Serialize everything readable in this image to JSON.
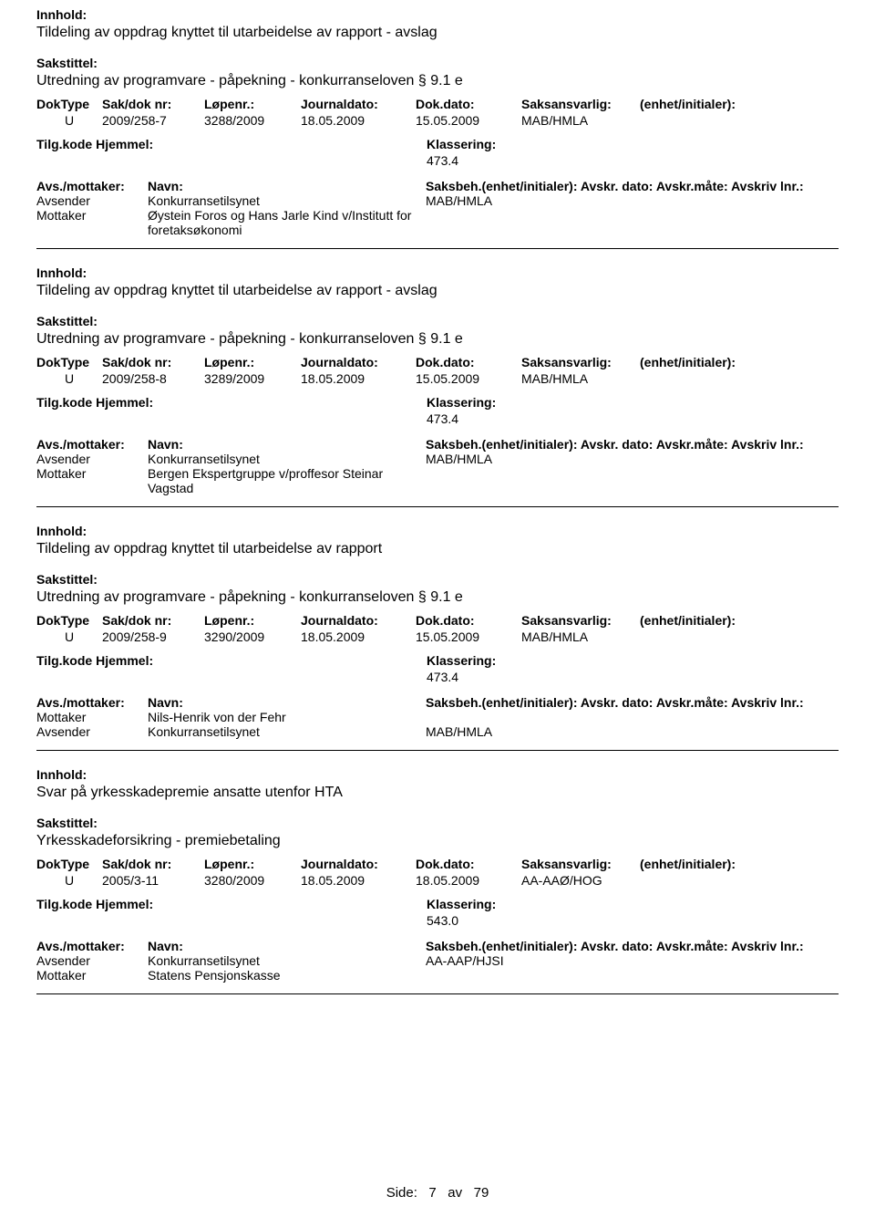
{
  "labels": {
    "innhold": "Innhold:",
    "sakstittel": "Sakstittel:",
    "doktype": "DokType",
    "sakdok": "Sak/dok nr:",
    "lopenr": "Løpenr.:",
    "journaldato": "Journaldato:",
    "dokdato": "Dok.dato:",
    "saksansvarlig": "Saksansvarlig:",
    "enhet_initialer": "(enhet/initialer):",
    "tilgkode": "Tilg.kode",
    "hjemmel": "Hjemmel:",
    "klassering": "Klassering:",
    "avs_mottaker": "Avs./mottaker:",
    "navn": "Navn:",
    "saksbeh_line": "Saksbeh.(enhet/initialer): Avskr. dato:  Avskr.måte:  Avskriv lnr.:",
    "avsender": "Avsender",
    "mottaker": "Mottaker",
    "side": "Side:",
    "av": "av"
  },
  "page": {
    "current": "7",
    "total": "79"
  },
  "entries": [
    {
      "title": "Tildeling av oppdrag knyttet til utarbeidelse av rapport - avslag",
      "subtitle": "Utredning av programvare - påpekning - konkurranseloven § 9.1 e",
      "doktype": "U",
      "sakdok": "2009/258-7",
      "lopenr": "3288/2009",
      "journaldato": "18.05.2009",
      "dokdato": "15.05.2009",
      "saksansvarlig": "MAB/HMLA",
      "klassering_val": "473.4",
      "parties": [
        {
          "role": "Avsender",
          "name": "Konkurransetilsynet",
          "saksbeh": "MAB/HMLA"
        },
        {
          "role": "Mottaker",
          "name": "Øystein Foros og Hans Jarle Kind v/Institutt for foretaksøkonomi",
          "saksbeh": ""
        }
      ]
    },
    {
      "title": "Tildeling av oppdrag knyttet til utarbeidelse av rapport - avslag",
      "subtitle": "Utredning av programvare - påpekning - konkurranseloven § 9.1 e",
      "doktype": "U",
      "sakdok": "2009/258-8",
      "lopenr": "3289/2009",
      "journaldato": "18.05.2009",
      "dokdato": "15.05.2009",
      "saksansvarlig": "MAB/HMLA",
      "klassering_val": "473.4",
      "parties": [
        {
          "role": "Avsender",
          "name": "Konkurransetilsynet",
          "saksbeh": "MAB/HMLA"
        },
        {
          "role": "Mottaker",
          "name": "Bergen Ekspertgruppe v/proffesor Steinar Vagstad",
          "saksbeh": ""
        }
      ]
    },
    {
      "title": "Tildeling av oppdrag knyttet til utarbeidelse av rapport",
      "subtitle": "Utredning av programvare - påpekning - konkurranseloven § 9.1 e",
      "doktype": "U",
      "sakdok": "2009/258-9",
      "lopenr": "3290/2009",
      "journaldato": "18.05.2009",
      "dokdato": "15.05.2009",
      "saksansvarlig": "MAB/HMLA",
      "klassering_val": "473.4",
      "parties": [
        {
          "role": "Mottaker",
          "name": "Nils-Henrik von der Fehr",
          "saksbeh": ""
        },
        {
          "role": "Avsender",
          "name": "Konkurransetilsynet",
          "saksbeh": "MAB/HMLA"
        }
      ]
    },
    {
      "title": "Svar på yrkesskadepremie ansatte utenfor HTA",
      "subtitle": "Yrkesskadeforsikring - premiebetaling",
      "doktype": "U",
      "sakdok": "2005/3-11",
      "lopenr": "3280/2009",
      "journaldato": "18.05.2009",
      "dokdato": "18.05.2009",
      "saksansvarlig": "AA-AAØ/HOG",
      "klassering_val": "543.0",
      "parties": [
        {
          "role": "Avsender",
          "name": "Konkurransetilsynet",
          "saksbeh": "AA-AAP/HJSI"
        },
        {
          "role": "Mottaker",
          "name": "Statens Pensjonskasse",
          "saksbeh": ""
        }
      ]
    }
  ]
}
